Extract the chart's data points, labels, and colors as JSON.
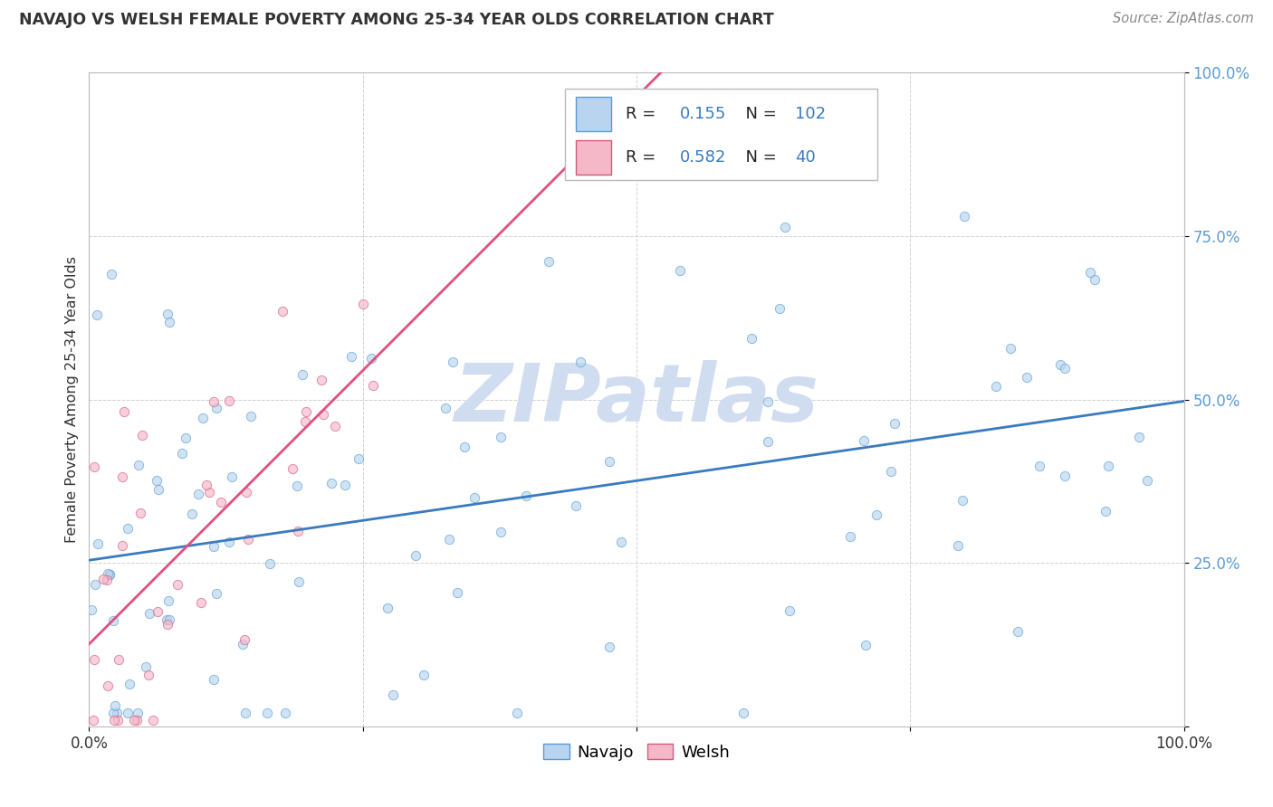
{
  "title": "NAVAJO VS WELSH FEMALE POVERTY AMONG 25-34 YEAR OLDS CORRELATION CHART",
  "source": "Source: ZipAtlas.com",
  "ylabel": "Female Poverty Among 25-34 Year Olds",
  "navajo_R": 0.155,
  "navajo_N": 102,
  "welsh_R": 0.582,
  "welsh_N": 40,
  "navajo_fill": "#b8d4ee",
  "navajo_edge": "#5b9bd5",
  "welsh_fill": "#f4b8c8",
  "welsh_edge": "#d45b7a",
  "navajo_line": "#3a7abf",
  "welsh_line": "#e05080",
  "watermark_color": "#d0ddf0",
  "background_color": "#ffffff",
  "grid_color": "#cccccc",
  "title_color": "#333333",
  "source_color": "#888888",
  "ytick_color": "#5b9bd5",
  "xtick_color": "#333333",
  "scatter_alpha": 0.65,
  "marker_size": 55,
  "navajo_seed": 42,
  "welsh_seed": 7
}
